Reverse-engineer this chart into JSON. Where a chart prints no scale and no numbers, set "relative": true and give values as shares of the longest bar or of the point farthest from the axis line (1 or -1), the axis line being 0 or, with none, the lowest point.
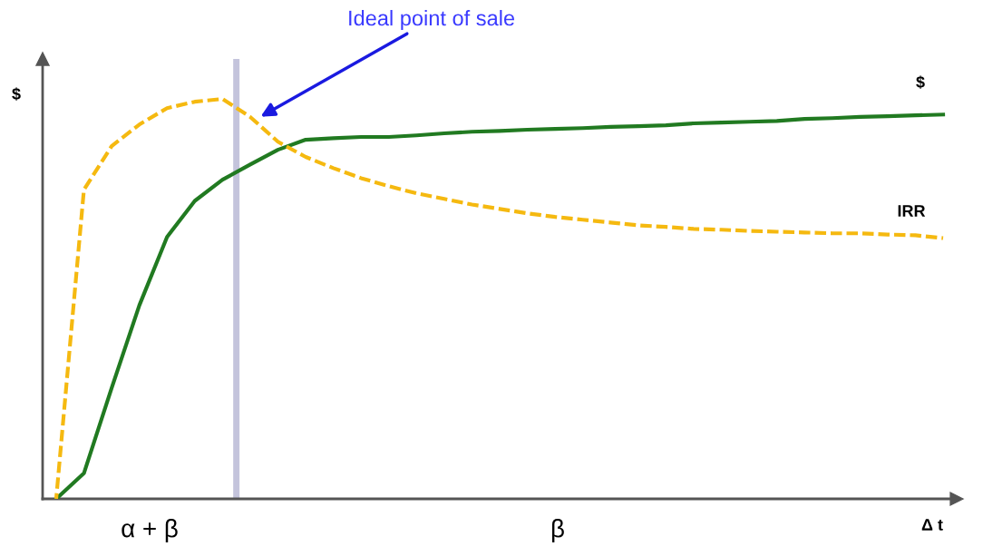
{
  "chart_data": {
    "type": "line",
    "relative": true,
    "ylabel": "$",
    "xlabel": "Δ t",
    "annotations": [
      "Ideal point of sale",
      "α + β",
      "β"
    ],
    "categories": [
      null,
      null,
      null,
      null,
      null,
      null,
      null,
      null,
      null,
      null,
      null,
      null,
      null,
      null,
      null,
      null,
      null,
      null,
      null,
      null,
      null,
      null,
      null,
      null,
      null,
      null,
      null,
      null,
      null,
      null,
      null,
      null,
      null
    ],
    "series": [
      {
        "name": "$",
        "color": "#217a21",
        "line_style": "solid",
        "values": [
          0,
          0.064,
          0.277,
          0.484,
          0.655,
          0.745,
          0.798,
          0.836,
          0.873,
          0.898,
          0.902,
          0.905,
          0.905,
          0.909,
          0.914,
          0.918,
          0.92,
          0.923,
          0.925,
          0.927,
          0.93,
          0.932,
          0.934,
          0.939,
          0.941,
          0.943,
          0.945,
          0.95,
          0.952,
          0.955,
          0.957,
          0.959,
          0.961
        ]
      },
      {
        "name": "IRR",
        "color": "#f5b910",
        "line_style": "dashed",
        "values": [
          0,
          0.773,
          0.882,
          0.936,
          0.977,
          0.993,
          1,
          0.955,
          0.893,
          0.855,
          0.827,
          0.802,
          0.782,
          0.764,
          0.75,
          0.736,
          0.725,
          0.714,
          0.705,
          0.698,
          0.691,
          0.684,
          0.68,
          0.675,
          0.673,
          0.67,
          0.668,
          0.666,
          0.664,
          0.664,
          0.661,
          0.659,
          0.652
        ]
      }
    ],
    "legend": false,
    "marker": "none"
  }
}
